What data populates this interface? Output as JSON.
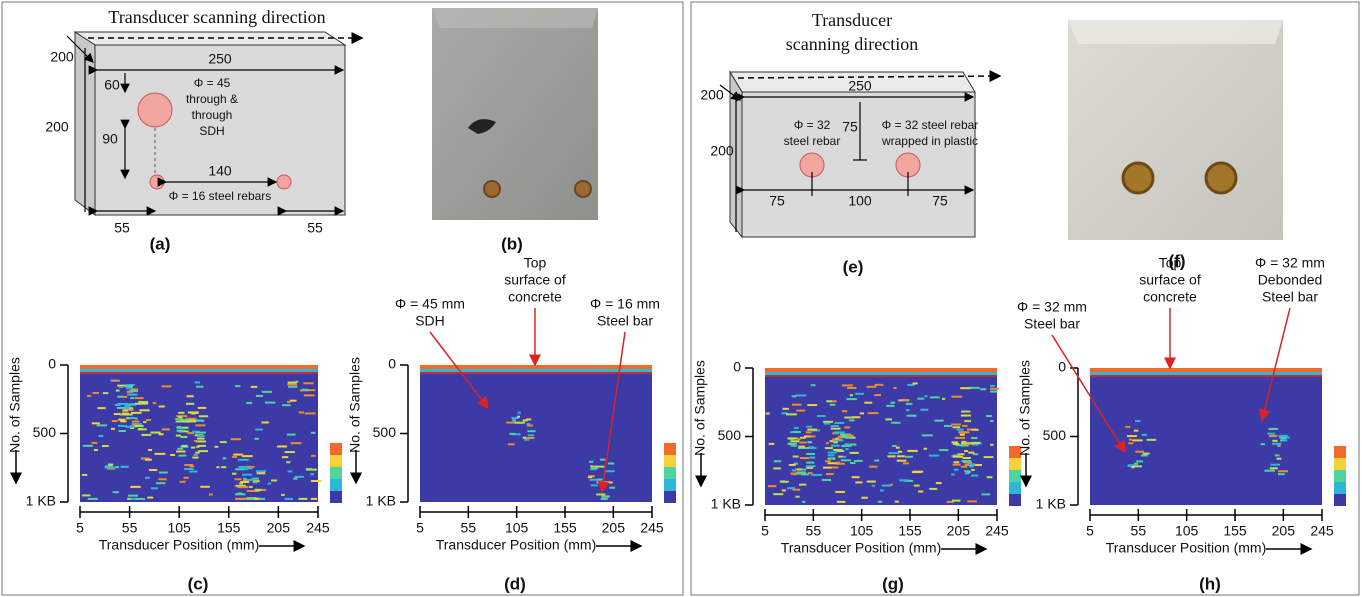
{
  "figure_a": {
    "caption": "(a)",
    "scan_direction": "Transducer scanning direction",
    "width": 250,
    "depth": 200,
    "height": 200,
    "top_offset": 60,
    "sdh_drop": 90,
    "sdh_label": [
      "Φ = 45",
      "through &",
      "through",
      "SDH"
    ],
    "spacing": 140,
    "left_edge": 55,
    "right_edge": 55,
    "rebar_label": "Φ = 16 steel rebars"
  },
  "figure_b": {
    "caption": "(b)"
  },
  "figure_e": {
    "caption": "(e)",
    "scan_direction": [
      "Transducer",
      "scanning direction"
    ],
    "width": 250,
    "depth": 200,
    "height": 200,
    "rebar_label": [
      "Φ = 32",
      "steel rebar"
    ],
    "cover": 75,
    "wrapped_label": [
      "Φ = 32 steel rebar",
      "wrapped in plastic"
    ],
    "left_edge": 75,
    "spacing": 100,
    "right_edge": 75
  },
  "figure_f": {
    "caption": "(f)"
  },
  "scans": [
    {
      "caption": "(c)",
      "y_axis_label": "No. of Samples",
      "yticks": [
        0,
        500,
        "1 KB"
      ],
      "xticks": [
        5,
        55,
        105,
        155,
        205,
        245
      ],
      "x_axis_label": "Transducer Position (mm)",
      "annotations": []
    },
    {
      "caption": "(d)",
      "y_axis_label": "No. of Samples",
      "yticks": [
        0,
        500,
        "1 KB"
      ],
      "xticks": [
        5,
        55,
        105,
        155,
        205,
        245
      ],
      "x_axis_label": "Transducer Position (mm)",
      "annotations": [
        [
          "Φ = 45 mm",
          "SDH"
        ],
        [
          "Top",
          "surface of",
          "concrete"
        ],
        [
          "Φ = 16 mm",
          "Steel bar"
        ]
      ]
    },
    {
      "caption": "(g)",
      "y_axis_label": "No. of Samples",
      "yticks": [
        0,
        500,
        "1 KB"
      ],
      "xticks": [
        5,
        55,
        105,
        155,
        205,
        245
      ],
      "x_axis_label": "Transducer Position (mm)",
      "annotations": []
    },
    {
      "caption": "(h)",
      "y_axis_label": "No. of Samples",
      "yticks": [
        0,
        500,
        "1 KB"
      ],
      "xticks": [
        5,
        55,
        105,
        155,
        205,
        245
      ],
      "x_axis_label": "Transducer Position (mm)",
      "annotations": [
        [
          "Φ = 32 mm",
          "Steel bar"
        ],
        [
          "Top",
          "surface of",
          "concrete"
        ],
        [
          "Φ = 32 mm",
          "Debonded",
          "Steel bar"
        ]
      ]
    }
  ]
}
